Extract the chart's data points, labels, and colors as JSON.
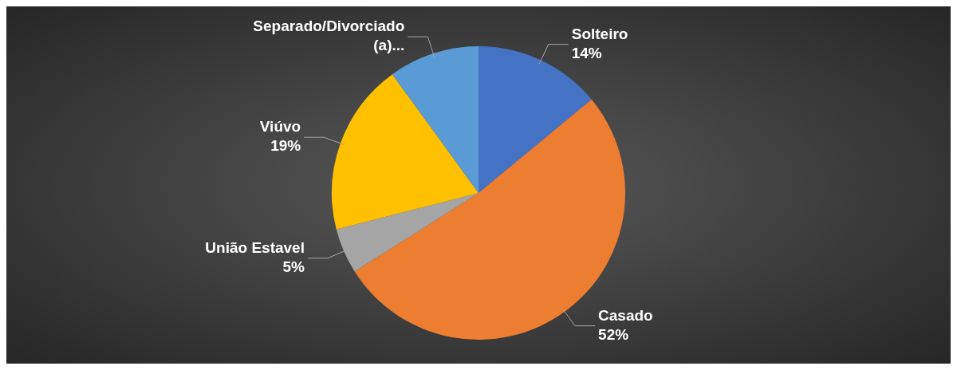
{
  "chart_data": {
    "type": "pie",
    "categories": [
      "Solteiro",
      "Casado",
      "União Estavel",
      "Viúvo",
      "Separado/Divorciado (a)..."
    ],
    "values": [
      14,
      52,
      5,
      19,
      10
    ],
    "value_labels": [
      "14%",
      "52%",
      "5%",
      "19%",
      null
    ],
    "colors": [
      "#4472c4",
      "#ed7d31",
      "#a5a5a5",
      "#ffc000",
      "#5b9bd5"
    ],
    "legend": false
  }
}
